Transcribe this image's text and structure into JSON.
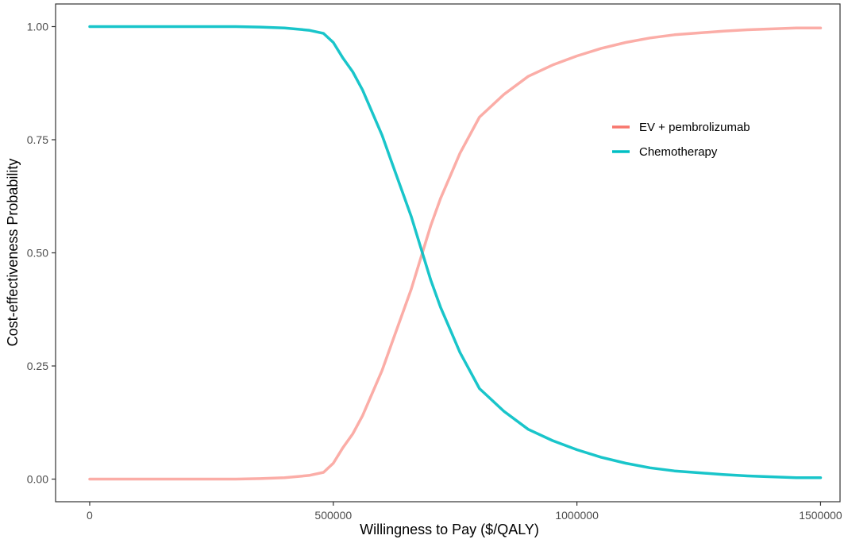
{
  "chart_data": {
    "type": "line",
    "xlabel": "Willingness to Pay ($/QALY)",
    "ylabel": "Cost-effectiveness Probability",
    "xlim": [
      -70000,
      1540000
    ],
    "ylim": [
      -0.05,
      1.05
    ],
    "x_ticks": [
      0,
      500000,
      1000000,
      1500000
    ],
    "x_tick_labels": [
      "0",
      "500000",
      "1000000",
      "1500000"
    ],
    "y_ticks": [
      0,
      0.25,
      0.5,
      0.75,
      1
    ],
    "y_tick_labels": [
      "0.00",
      "0.25",
      "0.50",
      "0.75",
      "1.00"
    ],
    "grid": false,
    "legend_position": "right",
    "series": [
      {
        "name": "EV + pembrolizumab",
        "color": "#F8766D",
        "points": [
          [
            0,
            0
          ],
          [
            100000,
            0
          ],
          [
            200000,
            0
          ],
          [
            300000,
            0
          ],
          [
            350000,
            0.001
          ],
          [
            400000,
            0.003
          ],
          [
            450000,
            0.008
          ],
          [
            480000,
            0.015
          ],
          [
            500000,
            0.035
          ],
          [
            520000,
            0.07
          ],
          [
            540000,
            0.1
          ],
          [
            560000,
            0.14
          ],
          [
            580000,
            0.19
          ],
          [
            600000,
            0.24
          ],
          [
            620000,
            0.3
          ],
          [
            640000,
            0.36
          ],
          [
            660000,
            0.42
          ],
          [
            680000,
            0.49
          ],
          [
            700000,
            0.56
          ],
          [
            720000,
            0.62
          ],
          [
            740000,
            0.67
          ],
          [
            760000,
            0.72
          ],
          [
            780000,
            0.76
          ],
          [
            800000,
            0.8
          ],
          [
            820000,
            0.82
          ],
          [
            850000,
            0.85
          ],
          [
            900000,
            0.89
          ],
          [
            950000,
            0.915
          ],
          [
            1000000,
            0.935
          ],
          [
            1050000,
            0.952
          ],
          [
            1100000,
            0.965
          ],
          [
            1150000,
            0.975
          ],
          [
            1200000,
            0.982
          ],
          [
            1250000,
            0.986
          ],
          [
            1300000,
            0.99
          ],
          [
            1350000,
            0.993
          ],
          [
            1400000,
            0.995
          ],
          [
            1450000,
            0.997
          ],
          [
            1500000,
            0.997
          ]
        ]
      },
      {
        "name": "Chemotherapy",
        "color": "#00BFC4",
        "points": [
          [
            0,
            1
          ],
          [
            100000,
            1
          ],
          [
            200000,
            1
          ],
          [
            300000,
            1
          ],
          [
            350000,
            0.999
          ],
          [
            400000,
            0.997
          ],
          [
            450000,
            0.992
          ],
          [
            480000,
            0.985
          ],
          [
            500000,
            0.965
          ],
          [
            520000,
            0.93
          ],
          [
            540000,
            0.9
          ],
          [
            560000,
            0.86
          ],
          [
            580000,
            0.81
          ],
          [
            600000,
            0.76
          ],
          [
            620000,
            0.7
          ],
          [
            640000,
            0.64
          ],
          [
            660000,
            0.58
          ],
          [
            680000,
            0.51
          ],
          [
            700000,
            0.44
          ],
          [
            720000,
            0.38
          ],
          [
            740000,
            0.33
          ],
          [
            760000,
            0.28
          ],
          [
            780000,
            0.24
          ],
          [
            800000,
            0.2
          ],
          [
            820000,
            0.18
          ],
          [
            850000,
            0.15
          ],
          [
            900000,
            0.11
          ],
          [
            950000,
            0.085
          ],
          [
            1000000,
            0.065
          ],
          [
            1050000,
            0.048
          ],
          [
            1100000,
            0.035
          ],
          [
            1150000,
            0.025
          ],
          [
            1200000,
            0.018
          ],
          [
            1250000,
            0.014
          ],
          [
            1300000,
            0.01
          ],
          [
            1350000,
            0.007
          ],
          [
            1400000,
            0.005
          ],
          [
            1450000,
            0.003
          ],
          [
            1500000,
            0.003
          ]
        ]
      }
    ]
  }
}
